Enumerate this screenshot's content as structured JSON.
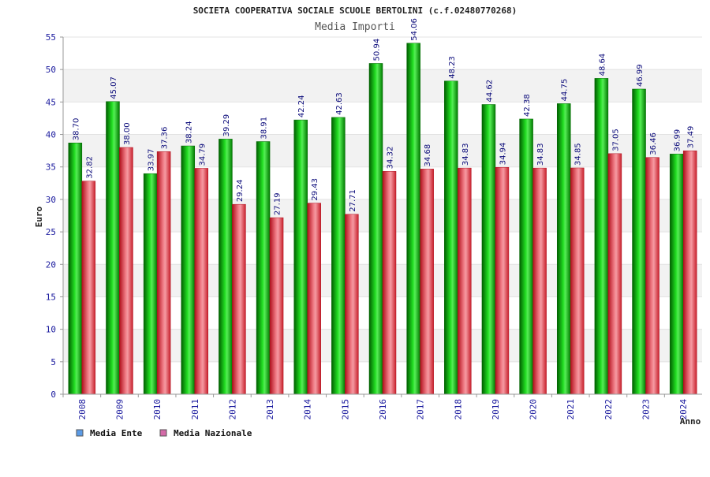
{
  "chart_data": {
    "type": "bar",
    "title": "SOCIETA COOPERATIVA SOCIALE SCUOLE BERTOLINI (c.f.02480770268)",
    "subtitle": "Media Importi",
    "xlabel": "Anno",
    "ylabel": "Euro",
    "ylim": [
      0,
      55
    ],
    "yticks": [
      0,
      5,
      10,
      15,
      20,
      25,
      30,
      35,
      40,
      45,
      50,
      55
    ],
    "grid": true,
    "legend_position": "bottom-left",
    "categories": [
      "2008",
      "2009",
      "2010",
      "2011",
      "2012",
      "2013",
      "2014",
      "2015",
      "2016",
      "2017",
      "2018",
      "2019",
      "2020",
      "2021",
      "2022",
      "2023",
      "2024"
    ],
    "series": [
      {
        "name": "Media Ente",
        "color": "#00aa00",
        "legend_color": "#5b9be6",
        "values": [
          38.7,
          45.07,
          33.97,
          38.24,
          39.29,
          38.91,
          42.24,
          42.63,
          50.94,
          54.06,
          48.23,
          44.62,
          42.38,
          44.75,
          48.64,
          46.99,
          36.99
        ],
        "labels": [
          "38.70",
          "45.07",
          "33.97",
          "38.24",
          "39.29",
          "38.91",
          "42.24",
          "42.63",
          "50.94",
          "54.06",
          "48.23",
          "44.62",
          "42.38",
          "44.75",
          "48.64",
          "46.99",
          "36.99"
        ]
      },
      {
        "name": "Media Nazionale",
        "color": "#e83a4a",
        "legend_color": "#d46aa8",
        "values": [
          32.82,
          38.0,
          37.36,
          34.79,
          29.24,
          27.19,
          29.43,
          27.71,
          34.32,
          34.68,
          34.83,
          34.94,
          34.83,
          34.85,
          37.05,
          36.46,
          37.49
        ],
        "labels": [
          "32.82",
          "38.00",
          "37.36",
          "34.79",
          "29.24",
          "27.19",
          "29.43",
          "27.71",
          "34.32",
          "34.68",
          "34.83",
          "34.94",
          "34.83",
          "34.85",
          "37.05",
          "36.46",
          "37.49"
        ]
      }
    ]
  }
}
